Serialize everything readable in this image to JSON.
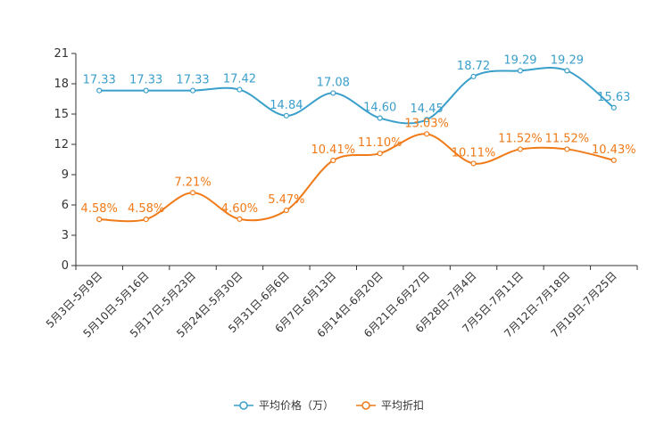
{
  "chart_data": {
    "type": "line",
    "title": "",
    "xlabel": "",
    "ylabel": "",
    "ylim": [
      0,
      21
    ],
    "yticks": [
      "0",
      "3",
      "6",
      "9",
      "12",
      "15",
      "18",
      "21"
    ],
    "grid": false,
    "legend_position": "bottom-center",
    "categories": [
      "5月3日-5月9日",
      "5月10日-5月16日",
      "5月17日-5月23日",
      "5月24日-5月30日",
      "5月31日-6月6日",
      "6月7日-6月13日",
      "6月14日-6月20日",
      "6月21日-6月27日",
      "6月28日-7月4日",
      "7月5日-7月11日",
      "7月12日-7月18日",
      "7月19日-7月25日"
    ],
    "series": [
      {
        "name": "平均价格（万）",
        "color": "#3a9fcb",
        "values": [
          17.33,
          17.33,
          17.33,
          17.42,
          14.84,
          17.08,
          14.6,
          14.45,
          18.72,
          19.29,
          19.29,
          15.63
        ],
        "labels": [
          "17.33",
          "17.33",
          "17.33",
          "17.42",
          "14.84",
          "17.08",
          "14.60",
          "14.45",
          "18.72",
          "19.29",
          "19.29",
          "15.63"
        ]
      },
      {
        "name": "平均折扣",
        "color": "#f07a18",
        "values": [
          4.58,
          4.58,
          7.21,
          4.6,
          5.47,
          10.41,
          11.1,
          13.03,
          10.11,
          11.52,
          11.52,
          10.43
        ],
        "labels": [
          "4.58%",
          "4.58%",
          "7.21%",
          "4.60%",
          "5.47%",
          "10.41%",
          "11.10%",
          "13.03%",
          "10.11%",
          "11.52%",
          "11.52%",
          "10.43%"
        ]
      }
    ]
  }
}
